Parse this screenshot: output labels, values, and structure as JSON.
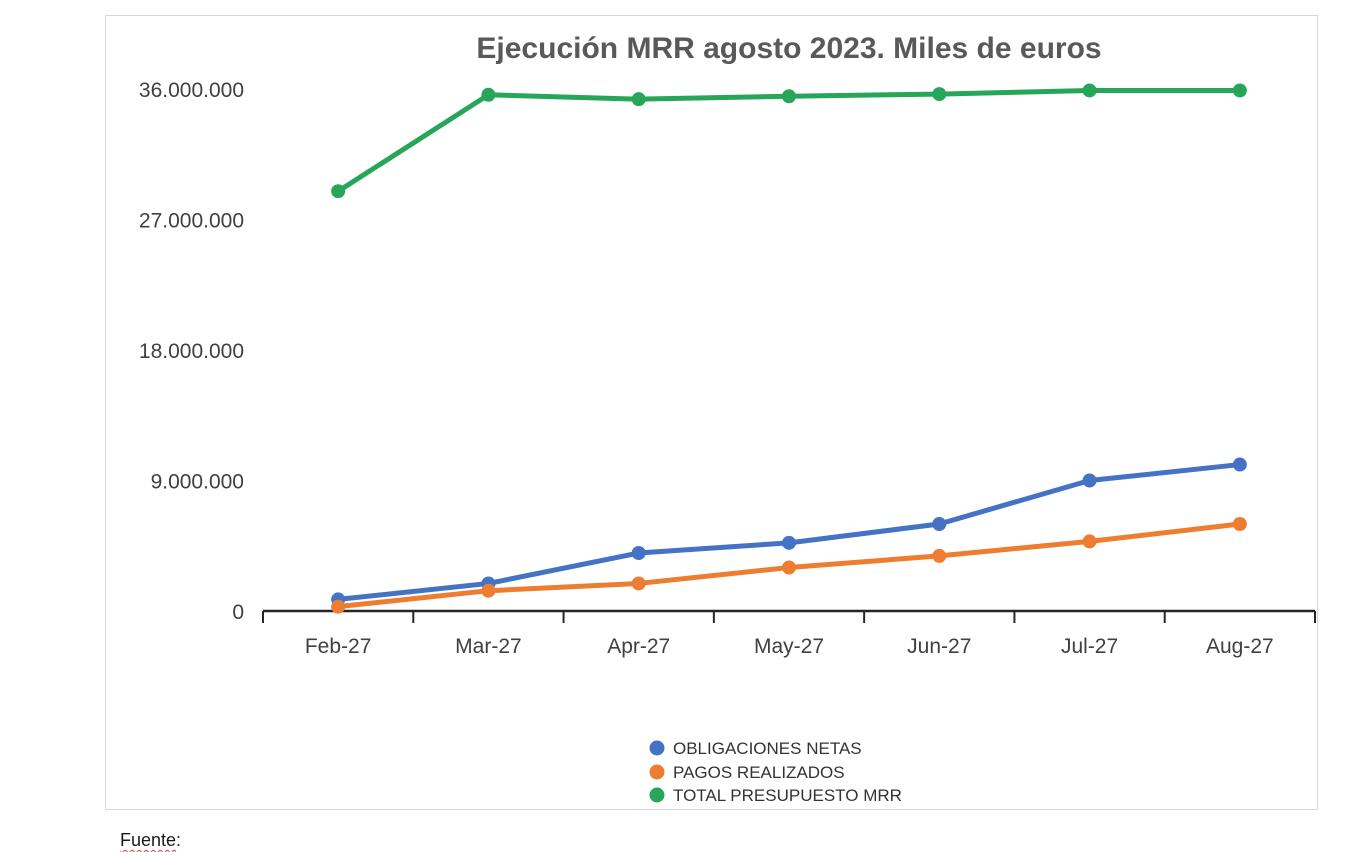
{
  "chart": {
    "source_word": "Fuente",
    "source_colon": ":"
  },
  "chart_data": {
    "type": "line",
    "title": "Ejecución MRR agosto 2023. Miles de euros",
    "categories": [
      "Feb-27",
      "Mar-27",
      "Apr-27",
      "May-27",
      "Jun-27",
      "Jul-27",
      "Aug-27"
    ],
    "series": [
      {
        "name": "OBLIGACIONES NETAS",
        "color": "#4472C4",
        "values": [
          800000,
          1900000,
          4000000,
          4700000,
          6000000,
          9000000,
          10100000
        ]
      },
      {
        "name": "PAGOS REALIZADOS",
        "color": "#ED7D31",
        "values": [
          300000,
          1400000,
          1900000,
          3000000,
          3800000,
          4800000,
          6000000
        ]
      },
      {
        "name": "TOTAL PRESUPUESTO MRR",
        "color": "#27A65A",
        "values": [
          28950000,
          35600000,
          35300000,
          35500000,
          35650000,
          35900000,
          35900000
        ]
      }
    ],
    "xlabel": "",
    "ylabel": "",
    "ylim": [
      0,
      36000000
    ],
    "ytick_step": 9000000,
    "ytick_labels": [
      "0",
      "9.000.000",
      "18.000.000",
      "27.000.000",
      "36.000.000"
    ],
    "grid": false,
    "legend_position": "bottom-center",
    "axis_color": "#262626",
    "title_color": "#595959",
    "tick_label_color": "#404040",
    "legend_label_color": "#333333"
  }
}
